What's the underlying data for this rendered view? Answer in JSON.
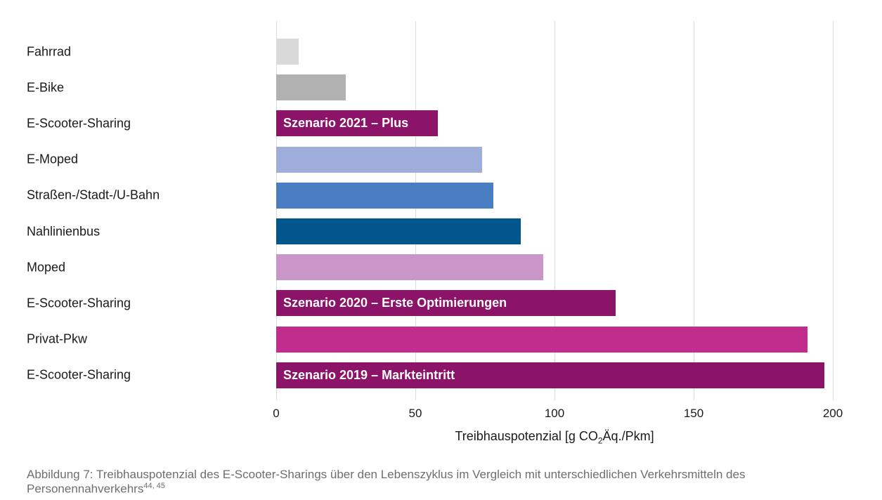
{
  "chart_data": {
    "type": "bar",
    "orientation": "horizontal",
    "xlabel": "Treibhauspotenzial [g CO2Äq./Pkm]",
    "xlim": [
      0,
      200
    ],
    "xticks": [
      0,
      50,
      100,
      150,
      200
    ],
    "grid": "vertical-gridlines",
    "legend": "none",
    "gridline_color": "#dcdcdc",
    "rows": [
      {
        "category": "Fahrrad",
        "value": 8,
        "color": "#d9d9d9",
        "bar_label": ""
      },
      {
        "category": "E-Bike",
        "value": 25,
        "color": "#b1b1b1",
        "bar_label": ""
      },
      {
        "category": "E-Scooter-Sharing",
        "value": 58,
        "color": "#8b1468",
        "bar_label": "Szenario 2021 – Plus"
      },
      {
        "category": "E-Moped",
        "value": 74,
        "color": "#9fadda",
        "bar_label": ""
      },
      {
        "category": "Straßen-/Stadt-/U-Bahn",
        "value": 78,
        "color": "#4a7ec2",
        "bar_label": ""
      },
      {
        "category": "Nahlinienbus",
        "value": 88,
        "color": "#02568e",
        "bar_label": ""
      },
      {
        "category": "Moped",
        "value": 96,
        "color": "#ca95c8",
        "bar_label": ""
      },
      {
        "category": "E-Scooter-Sharing",
        "value": 122,
        "color": "#8b1468",
        "bar_label": "Szenario 2020 – Erste Optimierungen"
      },
      {
        "category": "Privat-Pkw",
        "value": 191,
        "color": "#c02d8d",
        "bar_label": ""
      },
      {
        "category": "E-Scooter-Sharing",
        "value": 197,
        "color": "#8b1468",
        "bar_label": "Szenario 2019 – Markteintritt"
      }
    ]
  },
  "axis": {
    "xlabel_prefix": "Treibhauspotenzial [g CO",
    "xlabel_sub": "2",
    "xlabel_suffix": "Äq./Pkm]"
  },
  "caption": {
    "text": "Abbildung 7: Treibhauspotenzial des E-Scooter-Sharings über den Lebenszyklus im Vergleich mit unterschiedlichen Verkehrsmitteln des Personennahverkehrs",
    "superscript": "44, 45"
  }
}
